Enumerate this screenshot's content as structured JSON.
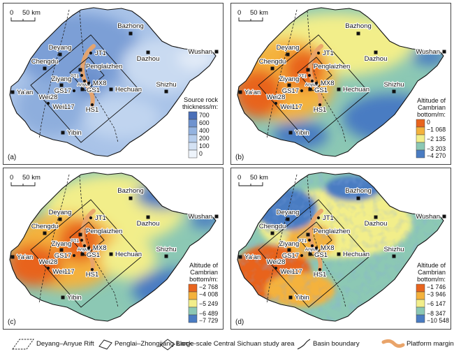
{
  "scale_label": "50 km",
  "scale_zero": "0",
  "places": {
    "bazhong": "Bazhong",
    "deyang": "Deyang",
    "chengdu": "Chengdu",
    "dazhou": "Dazhou",
    "wushan": "Wushan",
    "jt1": "JT1",
    "penglaizhen": "Penglaizhen",
    "pt1": "PT1",
    "anyue": "Anyue",
    "mx8": "MX8",
    "ziyang": "Ziyang",
    "gs17": "GS17",
    "gs1": "GS1",
    "hechuan": "Hechuan",
    "shizhu": "Shizhu",
    "yaan": "Ya'an",
    "wei28": "Wei28",
    "wei117": "Wei117",
    "hs1": "HS1",
    "yibin": "Yibin"
  },
  "panels": [
    {
      "tag": "(a)",
      "legend_title": [
        "Source rock",
        "thickness/m:"
      ],
      "legend_values": [
        "700",
        "600",
        "400",
        "200",
        "100",
        "0"
      ],
      "legend_colors": [
        "#4a6fb8",
        "#6f93cf",
        "#94b3e0",
        "#b6cdec",
        "#d4e2f4",
        "#eef4fb"
      ],
      "palette": "blue"
    },
    {
      "tag": "(b)",
      "legend_title": [
        "Altitude of",
        "Cambrian",
        "bottom/m:"
      ],
      "legend_values": [
        "0",
        "−1 068",
        "−2 135",
        "−3 203",
        "−4 270"
      ],
      "legend_colors": [
        "#e8641e",
        "#f4b23c",
        "#f2ee8a",
        "#8cc8b4",
        "#4a7cc2"
      ],
      "palette": "warm"
    },
    {
      "tag": "(c)",
      "legend_title": [
        "Altitude of",
        "Cambrian",
        "bottom/m:"
      ],
      "legend_values": [
        "−2 768",
        "−4 008",
        "−5 249",
        "−6 489",
        "−7 729"
      ],
      "legend_colors": [
        "#e8641e",
        "#f4b23c",
        "#f2ee8a",
        "#8cc8b4",
        "#4a7cc2"
      ],
      "palette": "warm"
    },
    {
      "tag": "(d)",
      "legend_title": [
        "Altitude of",
        "Cambrian",
        "bottom/m:"
      ],
      "legend_values": [
        "−1 746",
        "−3 946",
        "−6 147",
        "−8 347",
        "−10 548"
      ],
      "legend_colors": [
        "#e8641e",
        "#f4b23c",
        "#f2ee8a",
        "#8cc8b4",
        "#4a7cc2"
      ],
      "palette": "warm"
    }
  ],
  "legend": {
    "rift": "Deyang–Anyue Rift",
    "block": "Penglai–Zhongjiang Block",
    "study": "Large-scale Central Sichuan study area",
    "boundary": "Basin boundary",
    "belt": "Platform margin belt"
  },
  "colors": {
    "belt": "#e9a46a",
    "frame": "#333333",
    "point": "#111111"
  }
}
